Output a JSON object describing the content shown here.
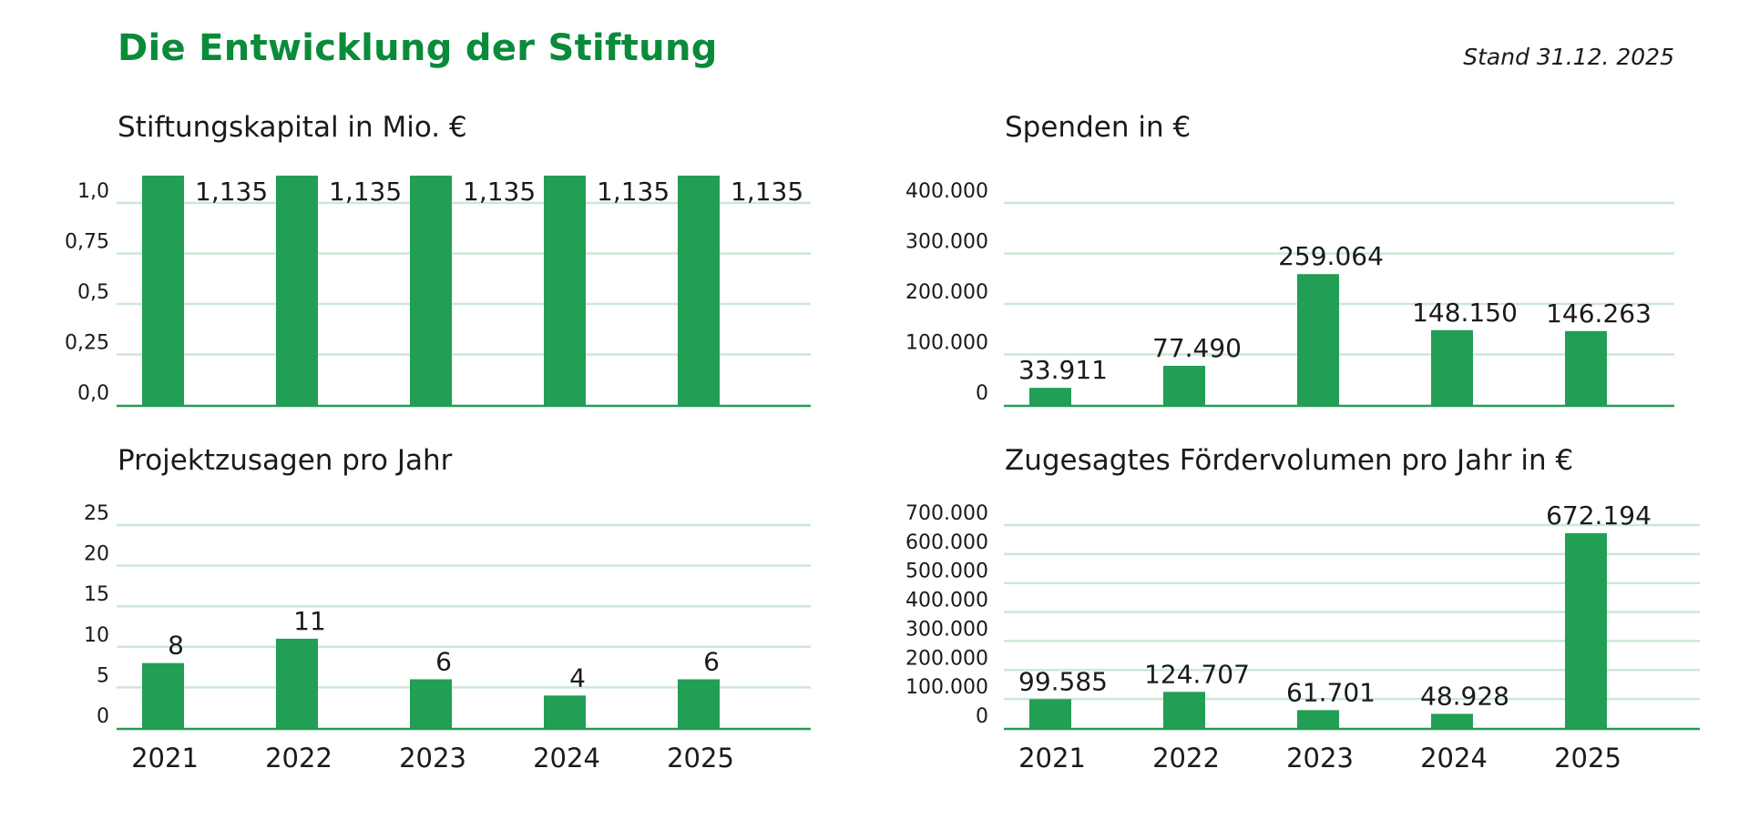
{
  "header": {
    "title": "Die Entwicklung der Stiftung",
    "stand": "Stand 31.12. 2025"
  },
  "colors": {
    "title": "#0a8b3a",
    "bar": "#229e55",
    "grid": "#cde8d3",
    "axis": "#229e55",
    "text": "#1a1a1a"
  },
  "chart_data": [
    {
      "id": "stiftungskapital",
      "type": "bar",
      "title": "Stiftungskapital in Mio. €",
      "categories": [
        "2021",
        "2022",
        "2023",
        "2024",
        "2025"
      ],
      "values": [
        1.135,
        1.135,
        1.135,
        1.135,
        1.135
      ],
      "value_labels": [
        "1,135",
        "1,135",
        "1,135",
        "1,135",
        "1,135"
      ],
      "label_position": "right",
      "yticks": [
        0,
        0.25,
        0.5,
        0.75,
        1.0
      ],
      "ytick_labels": [
        "0,0",
        "0,25",
        "0,5",
        "0,75",
        "1,0"
      ],
      "ylim": [
        0,
        1.0
      ],
      "show_xlabels": false,
      "xlabel": "",
      "ylabel": "",
      "grid": true
    },
    {
      "id": "spenden",
      "type": "bar",
      "title": "Spenden in €",
      "categories": [
        "2021",
        "2022",
        "2023",
        "2024",
        "2025"
      ],
      "values": [
        33911,
        77490,
        259064,
        148150,
        146263
      ],
      "value_labels": [
        "33.911",
        "77.490",
        "259.064",
        "148.150",
        "146.263"
      ],
      "label_position": "top",
      "yticks": [
        0,
        100000,
        200000,
        300000,
        400000
      ],
      "ytick_labels": [
        "0",
        "100.000",
        "200.000",
        "300.000",
        "400.000"
      ],
      "ylim": [
        0,
        400000
      ],
      "show_xlabels": false,
      "xlabel": "",
      "ylabel": "",
      "grid": true
    },
    {
      "id": "projektzusagen",
      "type": "bar",
      "title": "Projektzusagen pro Jahr",
      "categories": [
        "2021",
        "2022",
        "2023",
        "2024",
        "2025"
      ],
      "values": [
        8,
        11,
        6,
        4,
        6
      ],
      "value_labels": [
        "8",
        "11",
        "6",
        "4",
        "6"
      ],
      "label_position": "top",
      "yticks": [
        0,
        5,
        10,
        15,
        20,
        25
      ],
      "ytick_labels": [
        "0",
        "5",
        "10",
        "15",
        "20",
        "25"
      ],
      "ylim": [
        0,
        25
      ],
      "show_xlabels": true,
      "xlabel": "",
      "ylabel": "",
      "grid": true
    },
    {
      "id": "foerdervolumen",
      "type": "bar",
      "title": "Zugesagtes Fördervolumen pro Jahr in €",
      "categories": [
        "2021",
        "2022",
        "2023",
        "2024",
        "2025"
      ],
      "values": [
        99585,
        124707,
        61701,
        48928,
        672194
      ],
      "value_labels": [
        "99.585",
        "124.707",
        "61.701",
        "48.928",
        "672.194"
      ],
      "label_position": "top",
      "yticks": [
        0,
        100000,
        200000,
        300000,
        400000,
        500000,
        600000,
        700000
      ],
      "ytick_labels": [
        "0",
        "100.000",
        "200.000",
        "300.000",
        "400.000",
        "500.000",
        "600.000",
        "700.000"
      ],
      "ylim": [
        0,
        700000
      ],
      "show_xlabels": true,
      "xlabel": "",
      "ylabel": "",
      "grid": true
    }
  ]
}
